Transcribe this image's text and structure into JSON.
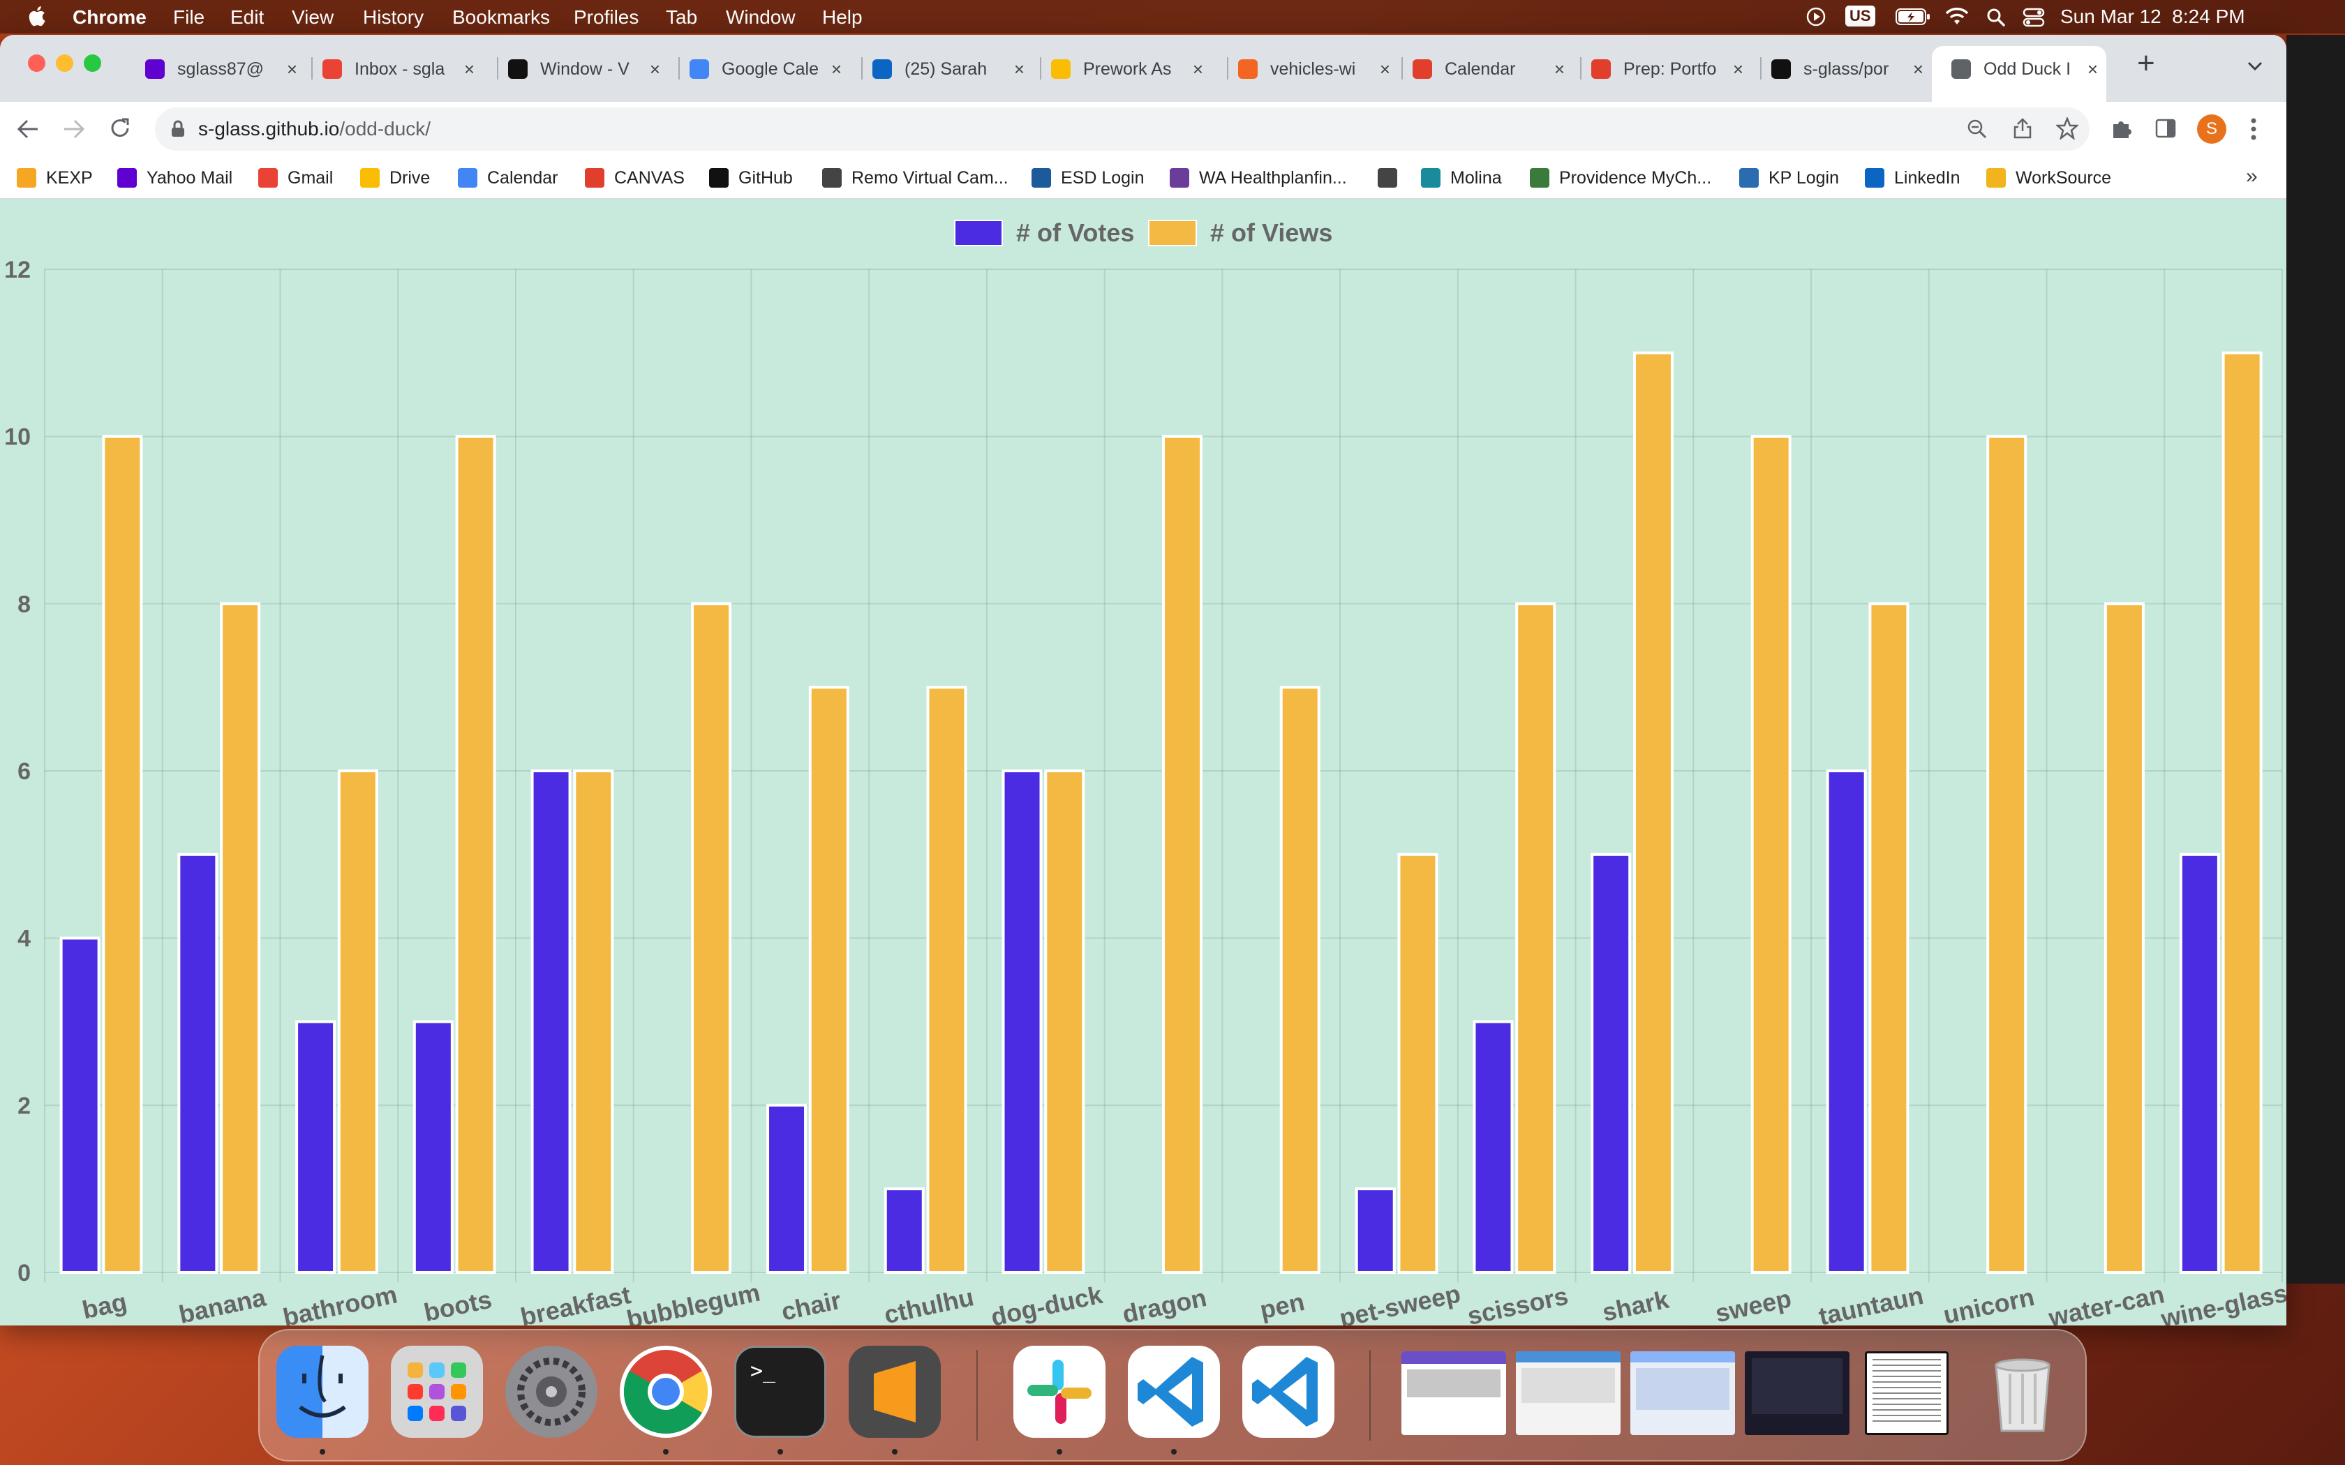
{
  "menubar": {
    "app_name": "Chrome",
    "menus": [
      "File",
      "Edit",
      "View",
      "History",
      "Bookmarks",
      "Profiles",
      "Tab",
      "Window",
      "Help"
    ],
    "input_source": "US",
    "datetime": "Sun Mar 12  8:24 PM"
  },
  "tabs": [
    {
      "title": "sglass87@",
      "icon": "yahoo-mail-icon",
      "color": "#5f01d1"
    },
    {
      "title": "Inbox - sgla",
      "icon": "gmail-icon",
      "color": "#ea4335"
    },
    {
      "title": "Window - V",
      "icon": "mdn-icon",
      "color": "#111111"
    },
    {
      "title": "Google Cale",
      "icon": "google-calendar-icon",
      "color": "#4285f4"
    },
    {
      "title": "(25) Sarah",
      "icon": "linkedin-icon",
      "color": "#0a66c2"
    },
    {
      "title": "Prework As",
      "icon": "google-drive-icon",
      "color": "#fbbc04"
    },
    {
      "title": "vehicles-wi",
      "icon": "app-icon",
      "color": "#f26522"
    },
    {
      "title": "Calendar",
      "icon": "canvas-icon",
      "color": "#e13f2b"
    },
    {
      "title": "Prep: Portfo",
      "icon": "canvas-icon",
      "color": "#e13f2b"
    },
    {
      "title": "s-glass/por",
      "icon": "github-icon",
      "color": "#111111"
    },
    {
      "title": "Odd Duck I",
      "icon": "globe-icon",
      "color": "#5f6368"
    }
  ],
  "address_bar": {
    "host": "s-glass.github.io",
    "path": "/odd-duck/"
  },
  "bookmarks": [
    {
      "label": "KEXP",
      "icon": "kexp-icon",
      "color": "#f5a623"
    },
    {
      "label": "Yahoo Mail",
      "icon": "yahoo-mail-icon",
      "color": "#5f01d1"
    },
    {
      "label": "Gmail",
      "icon": "gmail-icon",
      "color": "#ea4335"
    },
    {
      "label": "Drive",
      "icon": "google-drive-icon",
      "color": "#fbbc04"
    },
    {
      "label": "Calendar",
      "icon": "google-calendar-icon",
      "color": "#4285f4"
    },
    {
      "label": "CANVAS",
      "icon": "canvas-icon",
      "color": "#e13f2b"
    },
    {
      "label": "GitHub",
      "icon": "github-icon",
      "color": "#111111"
    },
    {
      "label": "Remo Virtual Cam...",
      "icon": "globe-icon",
      "color": "#444444"
    },
    {
      "label": "ESD Login",
      "icon": "esd-icon",
      "color": "#1d5a9a"
    },
    {
      "label": "WA Healthplanfin...",
      "icon": "wa-healthplan-icon",
      "color": "#6a3d9a"
    },
    {
      "label": "",
      "icon": "globe-icon",
      "color": "#444444"
    },
    {
      "label": "Molina",
      "icon": "molina-icon",
      "color": "#1a8b9d"
    },
    {
      "label": "Providence MyCh...",
      "icon": "providence-icon",
      "color": "#3a7a3a"
    },
    {
      "label": "KP Login",
      "icon": "kp-icon",
      "color": "#2b6cb0"
    },
    {
      "label": "LinkedIn",
      "icon": "linkedin-icon",
      "color": "#0a66c2"
    },
    {
      "label": "WorkSource",
      "icon": "worksource-icon",
      "color": "#f2b41d"
    }
  ],
  "chart_data": {
    "type": "bar",
    "categories": [
      "bag",
      "banana",
      "bathroom",
      "boots",
      "breakfast",
      "bubblegum",
      "chair",
      "cthulhu",
      "dog-duck",
      "dragon",
      "pen",
      "pet-sweep",
      "scissors",
      "shark",
      "sweep",
      "tauntaun",
      "unicorn",
      "water-can",
      "wine-glass"
    ],
    "series": [
      {
        "name": "# of Votes",
        "color": "#4b2ce3",
        "values": [
          4,
          5,
          3,
          3,
          6,
          0,
          2,
          1,
          6,
          0,
          0,
          1,
          3,
          5,
          0,
          6,
          0,
          0,
          5
        ]
      },
      {
        "name": "# of Views",
        "color": "#f4b942",
        "values": [
          10,
          8,
          6,
          10,
          6,
          8,
          7,
          7,
          6,
          10,
          7,
          5,
          8,
          11,
          10,
          8,
          10,
          8,
          11
        ]
      }
    ],
    "ylim": [
      0,
      12
    ],
    "yticks": [
      "0",
      "2",
      "4",
      "6",
      "8",
      "10",
      "12"
    ],
    "legend": "top-center",
    "grid": true
  },
  "dock": {
    "apps": [
      {
        "name": "finder-icon",
        "color": "#3a8df5"
      },
      {
        "name": "launchpad-icon",
        "color": "#d9d9d9"
      },
      {
        "name": "system-settings-icon",
        "color": "#8e8e93"
      },
      {
        "name": "chrome-icon",
        "color": "#ffffff"
      },
      {
        "name": "terminal-icon",
        "color": "#1e1e1e"
      },
      {
        "name": "sublime-text-icon",
        "color": "#4a4a4a"
      },
      {
        "name": "slack-icon",
        "color": "#ffffff"
      },
      {
        "name": "vscode-icon",
        "color": "#ffffff"
      },
      {
        "name": "vscode-icon",
        "color": "#ffffff"
      }
    ],
    "terminal_prompt": ">_"
  }
}
